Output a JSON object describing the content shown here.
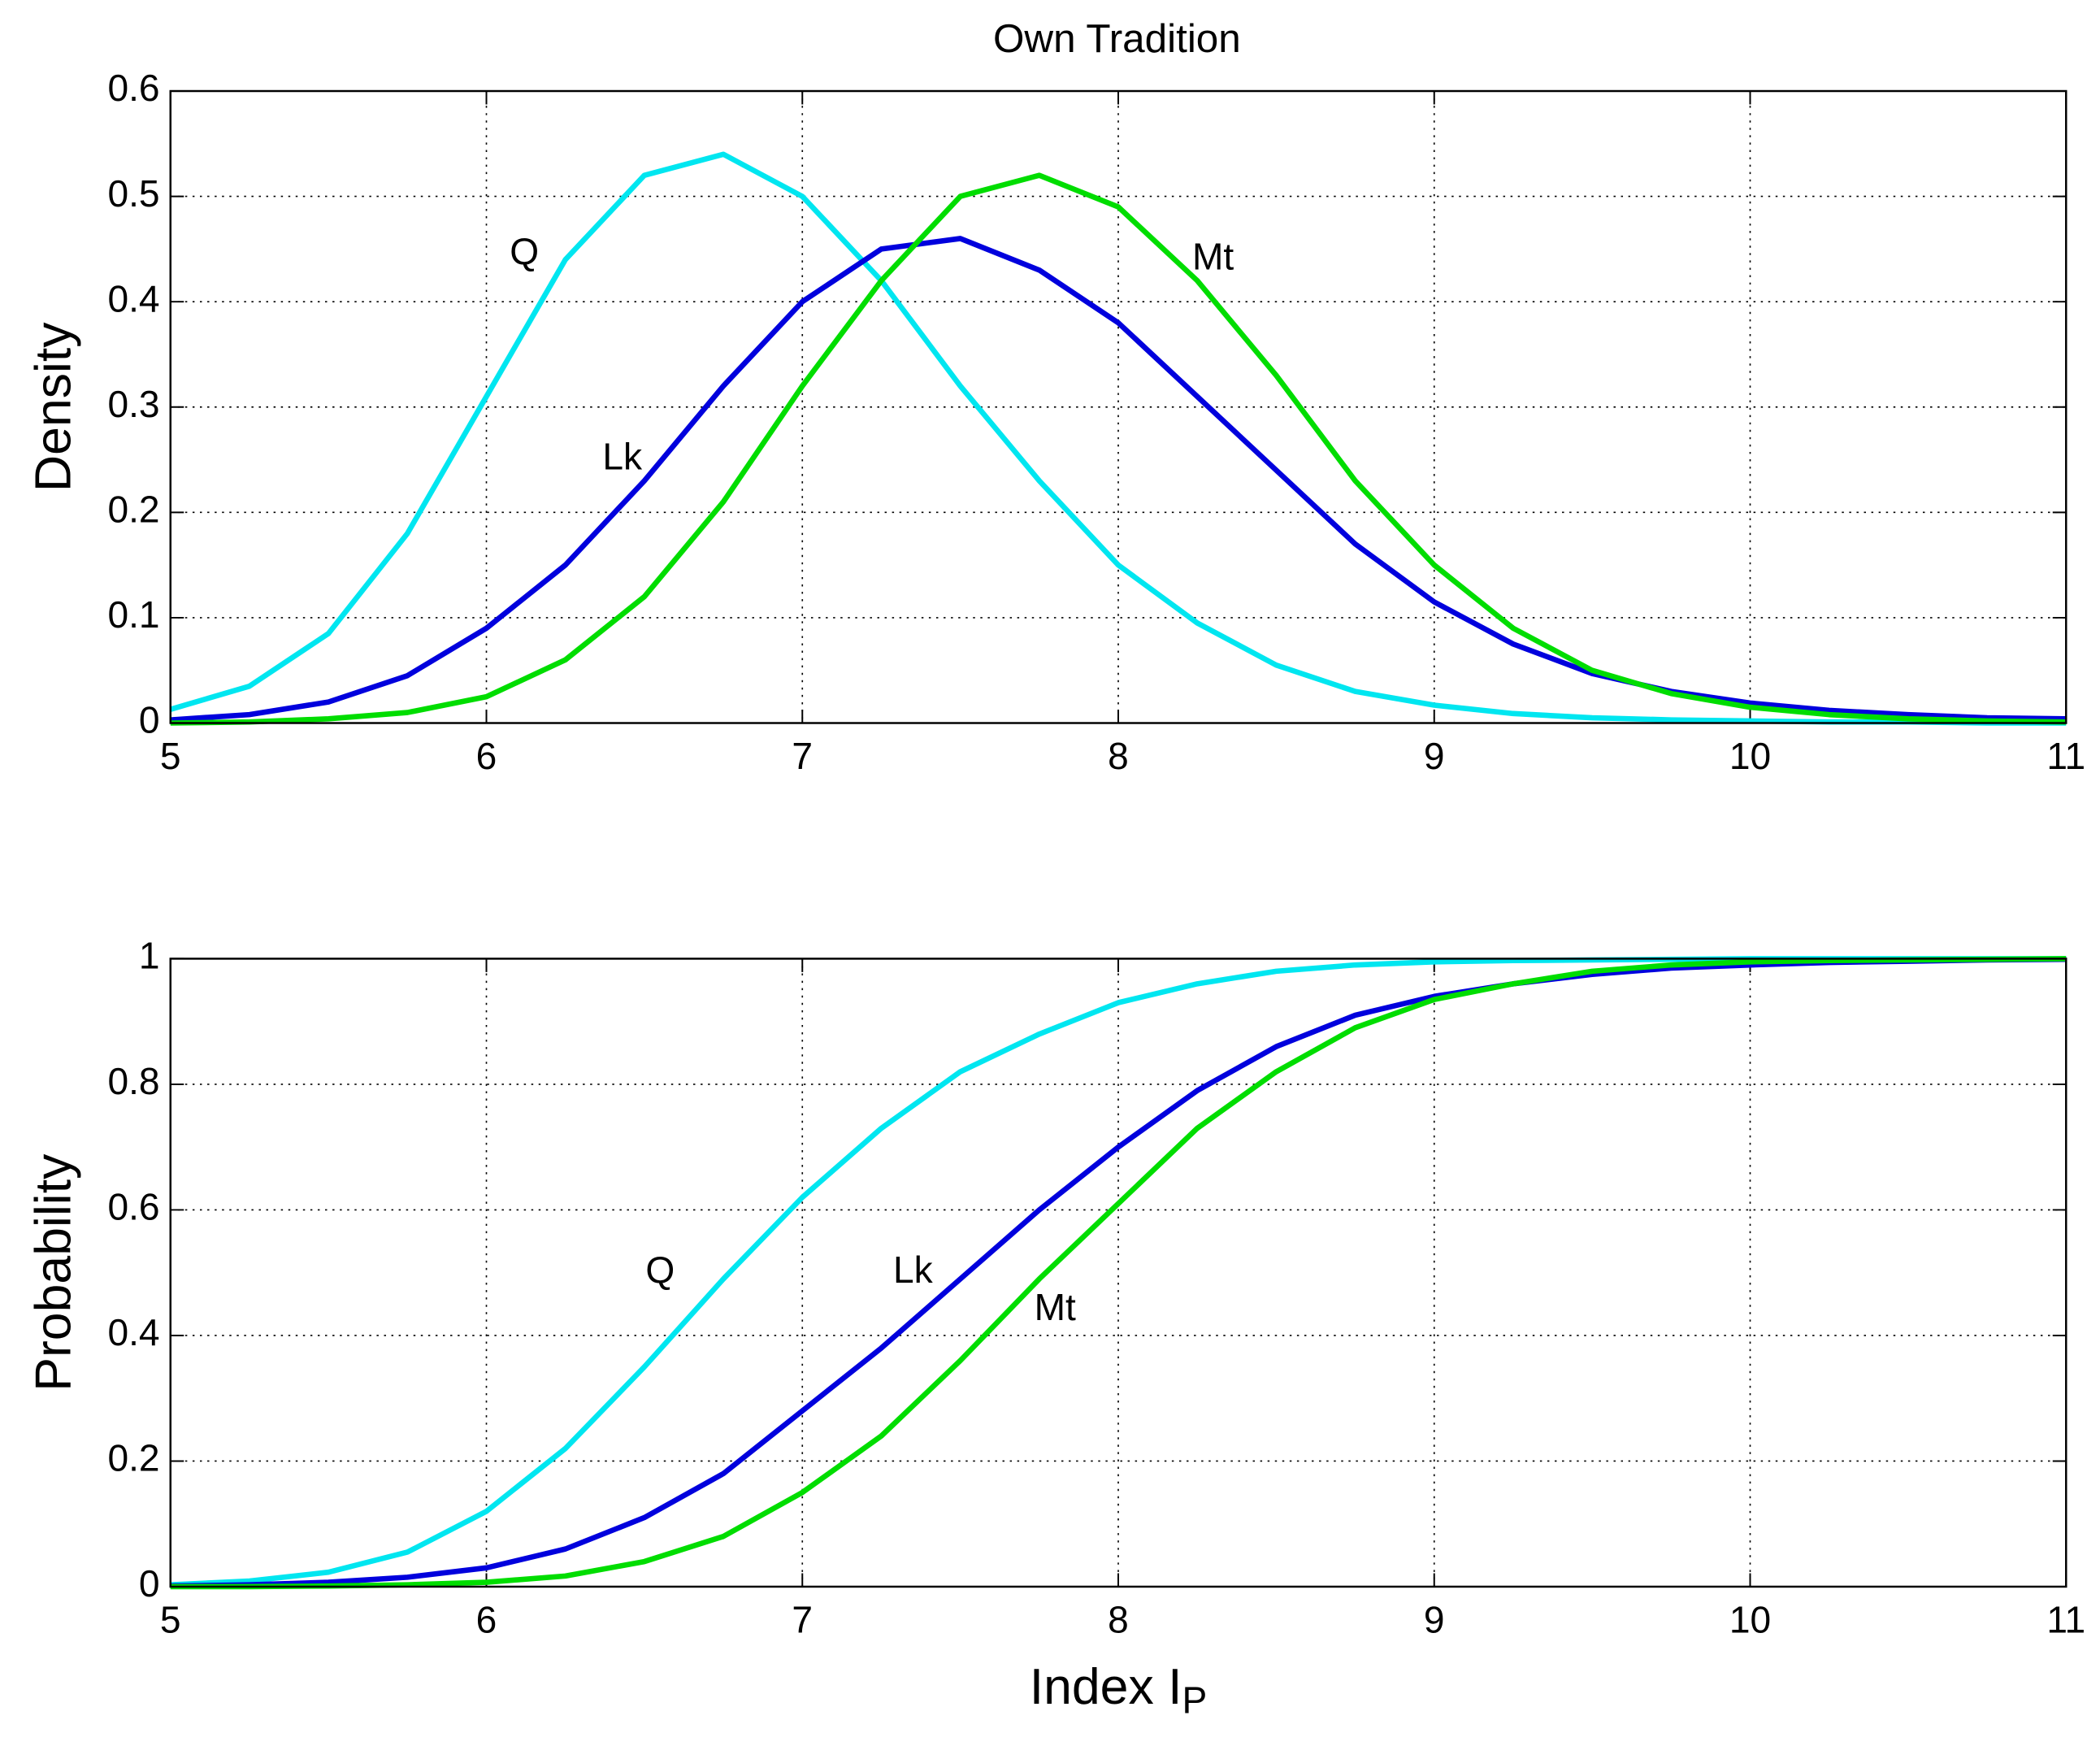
{
  "chart_data": [
    {
      "type": "line",
      "title": "Own Tradition",
      "ylabel": "Density",
      "x": [
        5,
        5.25,
        5.5,
        5.75,
        6,
        6.25,
        6.5,
        6.75,
        7,
        7.25,
        7.5,
        7.75,
        8,
        8.25,
        8.5,
        8.75,
        9,
        9.25,
        9.5,
        9.75,
        10,
        10.25,
        10.5,
        10.75,
        11
      ],
      "series": [
        {
          "name": "Q",
          "color": "#00e6f0",
          "values": [
            0.013,
            0.035,
            0.085,
            0.18,
            0.31,
            0.44,
            0.52,
            0.54,
            0.5,
            0.42,
            0.32,
            0.23,
            0.15,
            0.095,
            0.055,
            0.03,
            0.017,
            0.009,
            0.005,
            0.003,
            0.002,
            0.001,
            0.001,
            0,
            0
          ]
        },
        {
          "name": "Lk",
          "color": "#0000dd",
          "values": [
            0.003,
            0.008,
            0.02,
            0.045,
            0.09,
            0.15,
            0.23,
            0.32,
            0.4,
            0.45,
            0.46,
            0.43,
            0.38,
            0.31,
            0.24,
            0.17,
            0.115,
            0.075,
            0.047,
            0.03,
            0.019,
            0.012,
            0.008,
            0.005,
            0.004
          ]
        },
        {
          "name": "Mt",
          "color": "#00dd00",
          "values": [
            0,
            0.001,
            0.004,
            0.01,
            0.025,
            0.06,
            0.12,
            0.21,
            0.32,
            0.42,
            0.5,
            0.52,
            0.49,
            0.42,
            0.33,
            0.23,
            0.15,
            0.09,
            0.05,
            0.028,
            0.015,
            0.008,
            0.004,
            0.002,
            0.001
          ]
        }
      ],
      "xlim": [
        5,
        11
      ],
      "xticks": [
        5,
        6,
        7,
        8,
        9,
        10,
        11
      ],
      "ylim": [
        0,
        0.6
      ],
      "yticks": [
        0,
        0.1,
        0.2,
        0.3,
        0.4,
        0.5,
        0.6
      ],
      "grid": true
    },
    {
      "type": "line",
      "ylabel": "Probability",
      "xlabel": "Index I",
      "xlabel_subscript": "P",
      "x": [
        5,
        5.25,
        5.5,
        5.75,
        6,
        6.25,
        6.5,
        6.75,
        7,
        7.25,
        7.5,
        7.75,
        8,
        8.25,
        8.5,
        8.75,
        9,
        9.25,
        9.5,
        9.75,
        10,
        10.25,
        10.5,
        10.75,
        11
      ],
      "series": [
        {
          "name": "Q",
          "color": "#00e6f0",
          "values": [
            0.003,
            0.009,
            0.023,
            0.055,
            0.12,
            0.22,
            0.35,
            0.49,
            0.62,
            0.73,
            0.82,
            0.88,
            0.93,
            0.96,
            0.98,
            0.99,
            0.995,
            0.997,
            0.998,
            0.999,
            1,
            1,
            1,
            1,
            1
          ]
        },
        {
          "name": "Lk",
          "color": "#0000dd",
          "values": [
            0.001,
            0.003,
            0.007,
            0.015,
            0.03,
            0.06,
            0.11,
            0.18,
            0.28,
            0.38,
            0.49,
            0.6,
            0.7,
            0.79,
            0.86,
            0.91,
            0.94,
            0.96,
            0.975,
            0.985,
            0.99,
            0.994,
            0.996,
            0.998,
            0.999
          ]
        },
        {
          "name": "Mt",
          "color": "#00dd00",
          "values": [
            0,
            0,
            0.001,
            0.003,
            0.007,
            0.017,
            0.04,
            0.08,
            0.15,
            0.24,
            0.36,
            0.49,
            0.61,
            0.73,
            0.82,
            0.89,
            0.935,
            0.96,
            0.98,
            0.99,
            0.995,
            0.997,
            0.998,
            0.999,
            1
          ]
        }
      ],
      "xlim": [
        5,
        11
      ],
      "xticks": [
        5,
        6,
        7,
        8,
        9,
        10,
        11
      ],
      "ylim": [
        0,
        1
      ],
      "yticks": [
        0,
        0.2,
        0.4,
        0.6,
        0.8,
        1
      ],
      "grid": true
    }
  ]
}
